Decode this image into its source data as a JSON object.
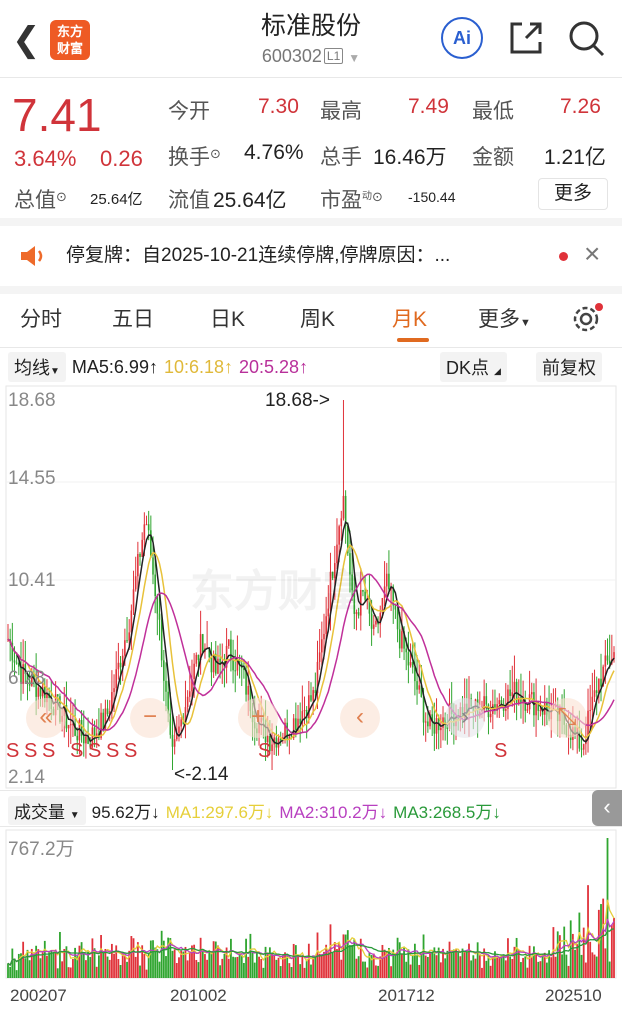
{
  "header": {
    "title": "标准股份",
    "code": "600302",
    "level_badge": "L1",
    "logo_text": [
      "东方",
      "财富"
    ],
    "ai_label": "Ai"
  },
  "quote": {
    "price": "7.41",
    "change_pct": "3.64%",
    "change": "0.26",
    "fields": [
      {
        "label": "今开",
        "value": "7.30"
      },
      {
        "label": "最高",
        "value": "7.49"
      },
      {
        "label": "最低",
        "value": "7.26"
      },
      {
        "label": "换手",
        "value": "4.76%"
      },
      {
        "label": "总手",
        "value": "16.46万"
      },
      {
        "label": "金额",
        "value": "1.21亿"
      },
      {
        "label": "总值",
        "value": "25.64亿"
      },
      {
        "label": "流值",
        "value": "25.64亿"
      },
      {
        "label": "市盈",
        "value": "-150.44",
        "superscript": "动"
      }
    ],
    "more_label": "更多"
  },
  "notice": {
    "text": "停复牌：自2025-10-21连续停牌,停牌原因：..."
  },
  "tabs": [
    {
      "label": "分时"
    },
    {
      "label": "五日"
    },
    {
      "label": "日K"
    },
    {
      "label": "周K"
    },
    {
      "label": "月K",
      "active": true
    },
    {
      "label": "更多"
    }
  ],
  "ma_bar": {
    "selector": "均线",
    "ma5": "MA5:6.99↑",
    "ma10": "10:6.18↑",
    "ma20": "20:5.28↑",
    "dk": "DK点",
    "adjust": "前复权"
  },
  "chart": {
    "y_labels": [
      "18.68",
      "14.55",
      "10.41",
      "6.28",
      "2.14"
    ],
    "max_annotation": "18.68->",
    "min_annotation": "<-2.14",
    "watermark": "东方财富",
    "signals": [
      "S",
      "S",
      "S",
      "S",
      "S",
      "S",
      "S",
      "S",
      "S"
    ]
  },
  "volume_bar": {
    "selector": "成交量",
    "value": "95.62万↓",
    "ma1": "MA1:297.6万↓",
    "ma2": "MA2:310.2万↓",
    "ma3": "MA3:268.5万↓",
    "max_label": "767.2万"
  },
  "dates": [
    "200207",
    "201002",
    "201712",
    "202510"
  ],
  "colors": {
    "up": "#e0323a",
    "down": "#2fa52f",
    "ma5": "#222222",
    "ma10": "#e8c23a",
    "ma20": "#c0309a",
    "accent": "#e06a20"
  },
  "price_keypoints": [
    [
      2002.5,
      8
    ],
    [
      2003,
      6.5
    ],
    [
      2004,
      5.5
    ],
    [
      2005,
      4
    ],
    [
      2005.6,
      3.5
    ],
    [
      2006.3,
      4.5
    ],
    [
      2007.2,
      9
    ],
    [
      2007.8,
      13.5
    ],
    [
      2008.3,
      9
    ],
    [
      2008.8,
      2.5
    ],
    [
      2009.5,
      6
    ],
    [
      2010,
      8
    ],
    [
      2010.5,
      6.5
    ],
    [
      2011,
      7.5
    ],
    [
      2011.5,
      6.5
    ],
    [
      2012,
      4.5
    ],
    [
      2012.6,
      3.5
    ],
    [
      2013.3,
      4
    ],
    [
      2014.3,
      5.5
    ],
    [
      2015.4,
      14.5
    ],
    [
      2015.8,
      9
    ],
    [
      2016.2,
      10
    ],
    [
      2016.6,
      8
    ],
    [
      2017.1,
      10.5
    ],
    [
      2017.6,
      8
    ],
    [
      2018.2,
      6
    ],
    [
      2018.7,
      4
    ],
    [
      2019.3,
      4.5
    ],
    [
      2020,
      4.8
    ],
    [
      2021,
      5
    ],
    [
      2022,
      5.6
    ],
    [
      2023,
      5
    ],
    [
      2024,
      4.2
    ],
    [
      2024.6,
      3.2
    ],
    [
      2025.2,
      6
    ],
    [
      2025.8,
      7.41
    ]
  ]
}
